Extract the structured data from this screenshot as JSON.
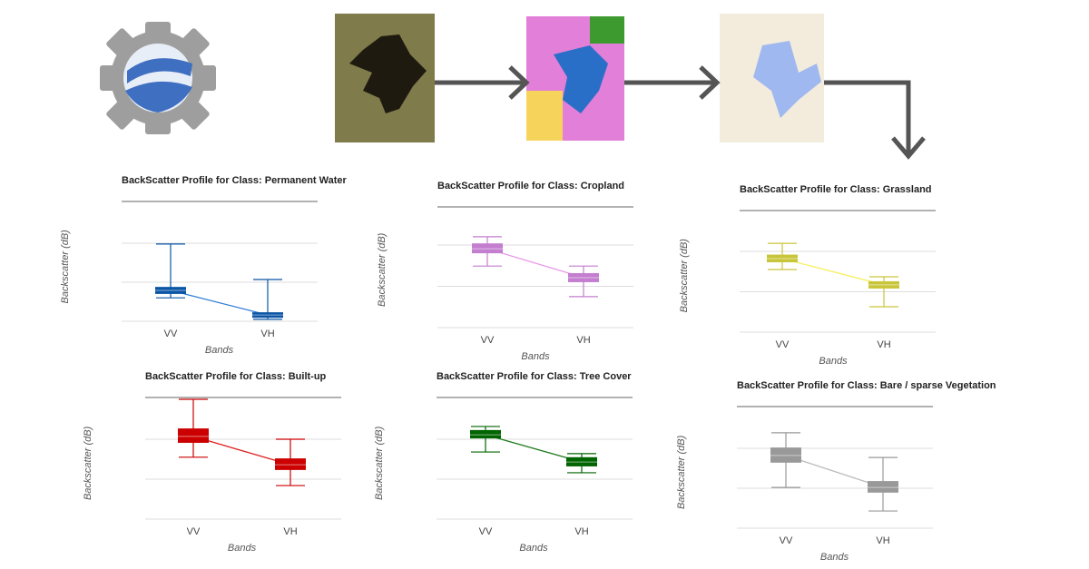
{
  "chart_data": [
    {
      "type": "box",
      "title": "BackScatter Profile for Class: Permanent Water",
      "y_label": "Backscatter (dB)",
      "x_label": "Bands",
      "categories": [
        "VV",
        "VH"
      ],
      "color": "#0b55a5",
      "line_color": "#2f7fd6",
      "grid": [
        0,
        1,
        2
      ],
      "series": [
        {
          "min": 0.6,
          "q1": 0.7,
          "median": 0.79,
          "q3": 0.88,
          "max": 1.98
        },
        {
          "min": 0.05,
          "q1": 0.09,
          "median": 0.16,
          "q3": 0.23,
          "max": 1.07
        }
      ]
    },
    {
      "type": "box",
      "title": "BackScatter Profile for Class: Cropland",
      "y_label": "Backscatter (dB)",
      "x_label": "Bands",
      "categories": [
        "VV",
        "VH"
      ],
      "color": "#c47ecf",
      "line_color": "#e89be8",
      "grid": [
        0,
        1,
        2
      ],
      "series": [
        {
          "min": 1.49,
          "q1": 1.8,
          "median": 1.91,
          "q3": 2.04,
          "max": 2.2
        },
        {
          "min": 0.75,
          "q1": 1.1,
          "median": 1.21,
          "q3": 1.32,
          "max": 1.49
        }
      ]
    },
    {
      "type": "box",
      "title": "BackScatter Profile for Class: Grassland",
      "y_label": "Backscatter (dB)",
      "x_label": "Bands",
      "categories": [
        "VV",
        "VH"
      ],
      "color": "#c9c53a",
      "line_color": "#f5f060",
      "grid": [
        0,
        1,
        2
      ],
      "series": [
        {
          "min": 1.55,
          "q1": 1.73,
          "median": 1.82,
          "q3": 1.92,
          "max": 2.2
        },
        {
          "min": 0.63,
          "q1": 1.08,
          "median": 1.17,
          "q3": 1.26,
          "max": 1.37
        }
      ]
    },
    {
      "type": "box",
      "title": "BackScatter Profile for Class: Built-up",
      "y_label": "Backscatter (dB)",
      "x_label": "Bands",
      "categories": [
        "VV",
        "VH"
      ],
      "color": "#cc0000",
      "line_color": "#e02020",
      "grid": [
        0,
        1,
        2
      ],
      "series": [
        {
          "min": 1.55,
          "q1": 1.91,
          "median": 2.07,
          "q3": 2.27,
          "max": 3.0
        },
        {
          "min": 0.84,
          "q1": 1.23,
          "median": 1.36,
          "q3": 1.52,
          "max": 2.0
        }
      ]
    },
    {
      "type": "box",
      "title": "BackScatter Profile for Class: Tree Cover",
      "y_label": "Backscatter (dB)",
      "x_label": "Bands",
      "categories": [
        "VV",
        "VH"
      ],
      "color": "#006400",
      "line_color": "#1e7a1e",
      "grid": [
        0,
        1,
        2
      ],
      "series": [
        {
          "min": 1.68,
          "q1": 2.02,
          "median": 2.11,
          "q3": 2.23,
          "max": 2.32
        },
        {
          "min": 1.16,
          "q1": 1.32,
          "median": 1.43,
          "q3": 1.55,
          "max": 1.64
        }
      ]
    },
    {
      "type": "box",
      "title": "BackScatter Profile for Class: Bare / sparse Vegetation",
      "y_label": "Backscatter (dB)",
      "x_label": "Bands",
      "categories": [
        "VV",
        "VH"
      ],
      "color": "#999999",
      "line_color": "#bbbbbb",
      "grid": [
        0,
        1,
        2
      ],
      "series": [
        {
          "min": 1.02,
          "q1": 1.64,
          "median": 1.82,
          "q3": 2.02,
          "max": 2.39
        },
        {
          "min": 0.43,
          "q1": 0.89,
          "median": 1.02,
          "q3": 1.18,
          "max": 1.77
        }
      ]
    }
  ]
}
